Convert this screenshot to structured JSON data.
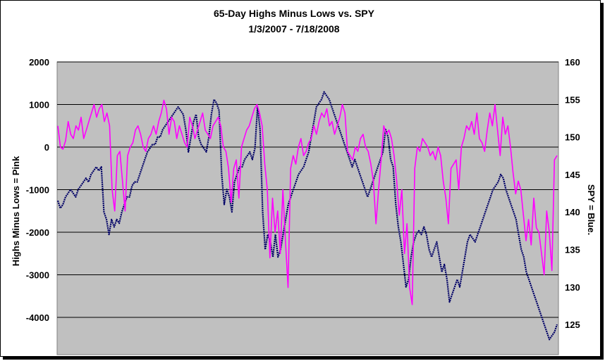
{
  "chart_data": {
    "type": "line",
    "title": "65-Day Highs Minus Lows vs. SPY",
    "subtitle": "1/3/2007 - 7/18/2008",
    "ylabel_left": "Highs Minus Lows = Pink",
    "ylabel_right": "SPY = Blue.",
    "ylim_left": [
      -5000,
      2000
    ],
    "ylim_right": [
      120,
      160
    ],
    "yticks_left": [
      2000,
      1000,
      0,
      -1000,
      -2000,
      -3000,
      -4000
    ],
    "yticks_right": [
      160,
      155,
      150,
      145,
      140,
      135,
      130,
      125
    ],
    "grid": true,
    "plot_background": "#c0c0c0",
    "series": [
      {
        "name": "Highs Minus Lows",
        "axis": "left",
        "color": "#ff00ff",
        "values": [
          500,
          0,
          -50,
          150,
          600,
          300,
          200,
          500,
          400,
          700,
          200,
          400,
          600,
          800,
          1000,
          700,
          900,
          1000,
          600,
          800,
          500,
          -1000,
          -1500,
          -200,
          -100,
          -800,
          -1500,
          -200,
          0,
          100,
          400,
          500,
          300,
          0,
          -100,
          200,
          300,
          500,
          300,
          600,
          800,
          1100,
          900,
          300,
          700,
          600,
          200,
          500,
          300,
          100,
          0,
          700,
          500,
          200,
          400,
          600,
          800,
          400,
          300,
          200,
          500,
          600,
          700,
          500,
          0,
          -100,
          -500,
          -1300,
          -500,
          -300,
          -1200,
          0,
          200,
          400,
          500,
          700,
          900,
          1000,
          800,
          500,
          -400,
          -1000,
          -2600,
          -1200,
          -2000,
          -1500,
          -2500,
          -1000,
          -2200,
          -3300,
          -500,
          -200,
          -400,
          0,
          200,
          -200,
          -100,
          100,
          200,
          500,
          300,
          600,
          800,
          700,
          900,
          500,
          600,
          300,
          500,
          700,
          1000,
          800,
          -100,
          -200,
          -300,
          0,
          -100,
          200,
          300,
          0,
          -100,
          -400,
          -800,
          -1800,
          -1000,
          -300,
          500,
          300,
          400,
          200,
          -200,
          -800,
          -1600,
          -1000,
          -2500,
          -1800,
          -3300,
          -3700,
          -500,
          0,
          -100,
          200,
          100,
          0,
          -200,
          -100,
          -300,
          0,
          -200,
          -800,
          -1200,
          -1800,
          -500,
          -400,
          -300,
          -1000,
          0,
          200,
          500,
          400,
          600,
          300,
          800,
          200,
          100,
          -100,
          400,
          800,
          500,
          1000,
          400,
          -200,
          700,
          300,
          500,
          0,
          -600,
          -1100,
          -800,
          -1000,
          -1600,
          -2200,
          -1700,
          -2300,
          -1200,
          -1900,
          -2000,
          -2500,
          -3000,
          -1500,
          -2000,
          -2900,
          -300,
          -200
        ]
      },
      {
        "name": "SPY",
        "axis": "right",
        "color": "#000066",
        "values": [
          141.5,
          140.5,
          141,
          142,
          142.5,
          143,
          142.5,
          142,
          143,
          143.5,
          144,
          144.5,
          144,
          145,
          145.5,
          146,
          145.5,
          146,
          140,
          139,
          137,
          139,
          138,
          139,
          138.5,
          140,
          141,
          142,
          142,
          143.5,
          144,
          144,
          145,
          146,
          147,
          148,
          148.5,
          149,
          149,
          150,
          150,
          151,
          151.5,
          152,
          152.5,
          153,
          153.5,
          154,
          153.5,
          153,
          151,
          148,
          150,
          152,
          153,
          150,
          149,
          148.5,
          148,
          150,
          153,
          155,
          154.5,
          153.5,
          145,
          141,
          143,
          142,
          140,
          144,
          145,
          146,
          146,
          147,
          147.5,
          148,
          147,
          148.5,
          154,
          151,
          140,
          135,
          137,
          136,
          134,
          137,
          134,
          135,
          137,
          139,
          141,
          142,
          143,
          144,
          145,
          145.5,
          146,
          147,
          148,
          150,
          152,
          154,
          154.5,
          155,
          156,
          155.5,
          155,
          154,
          153,
          152,
          151,
          150,
          149,
          148,
          147,
          146,
          147,
          146,
          145,
          144,
          143,
          142,
          143,
          144,
          145,
          146,
          147,
          148,
          151,
          150,
          147,
          146,
          141,
          138,
          136,
          133,
          130,
          131,
          134,
          136,
          137,
          137.5,
          137,
          138,
          137,
          135,
          134,
          135,
          136,
          134,
          132,
          133,
          131,
          128,
          129,
          130,
          131,
          130,
          132,
          134,
          136,
          137,
          136.5,
          136,
          137,
          138,
          139,
          140,
          141,
          142,
          143,
          143.5,
          144,
          145,
          144.5,
          143,
          142,
          141,
          140,
          139,
          137,
          135,
          134,
          132,
          131,
          130,
          129,
          128,
          127,
          126,
          125,
          124,
          123,
          123.5,
          124,
          125
        ]
      }
    ]
  }
}
